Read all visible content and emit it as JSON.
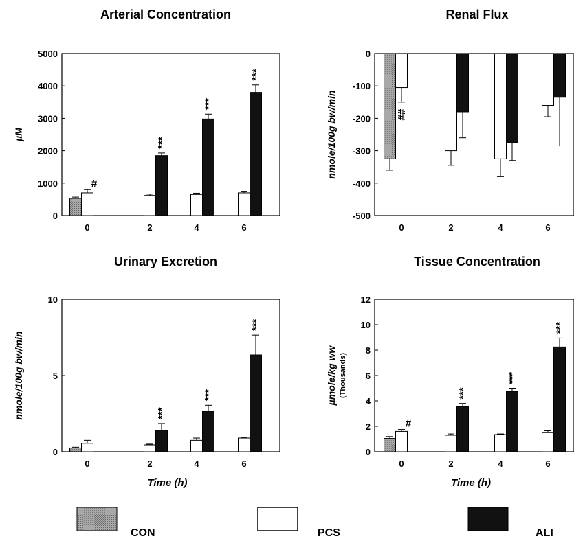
{
  "colors": {
    "CON": "#9a9a9a",
    "PCS": "#ffffff",
    "ALI": "#111111",
    "axis": "#000000"
  },
  "legend": [
    {
      "key": "CON",
      "label": "CON"
    },
    {
      "key": "PCS",
      "label": "PCS"
    },
    {
      "key": "ALI",
      "label": "ALI"
    }
  ],
  "chart_data": [
    {
      "type": "bar",
      "title": "Arterial Concentration",
      "ylabel": "µM",
      "ysublabel": "",
      "xlabel": "",
      "ylim": [
        0,
        5000
      ],
      "yticks": [
        0,
        1000,
        2000,
        3000,
        4000,
        5000
      ],
      "categories": [
        "0",
        "2",
        "4",
        "6"
      ],
      "series": [
        {
          "name": "CON",
          "values": [
            530,
            null,
            null,
            null
          ],
          "errors": [
            40,
            null,
            null,
            null
          ],
          "ann": [
            null,
            null,
            null,
            null
          ]
        },
        {
          "name": "PCS",
          "values": [
            700,
            620,
            650,
            700
          ],
          "errors": [
            100,
            40,
            40,
            50
          ],
          "ann": [
            "#",
            null,
            null,
            null
          ]
        },
        {
          "name": "ALI",
          "values": [
            null,
            1850,
            2980,
            3800
          ],
          "errors": [
            null,
            80,
            150,
            230
          ],
          "ann": [
            null,
            "***",
            "***",
            "***"
          ]
        }
      ]
    },
    {
      "type": "bar",
      "title": "Renal Flux",
      "ylabel": "nmole/100g bw/min",
      "ysublabel": "",
      "xlabel": "",
      "ylim": [
        -500,
        0
      ],
      "yticks": [
        -500,
        -400,
        -300,
        -200,
        -100,
        0
      ],
      "categories": [
        "0",
        "2",
        "4",
        "6"
      ],
      "series": [
        {
          "name": "CON",
          "values": [
            -325,
            null,
            null,
            null
          ],
          "errors": [
            35,
            null,
            null,
            null
          ],
          "ann": [
            null,
            null,
            null,
            null
          ]
        },
        {
          "name": "PCS",
          "values": [
            -105,
            -300,
            -325,
            -160
          ],
          "errors": [
            45,
            45,
            55,
            35
          ],
          "ann": [
            "##",
            null,
            null,
            null
          ]
        },
        {
          "name": "ALI",
          "values": [
            null,
            -180,
            -275,
            -135
          ],
          "errors": [
            null,
            80,
            55,
            150
          ],
          "ann": [
            null,
            null,
            null,
            null
          ]
        }
      ]
    },
    {
      "type": "bar",
      "title": "Urinary Excretion",
      "ylabel": "nmole/100g bw/min",
      "ysublabel": "",
      "xlabel": "Time (h)",
      "ylim": [
        0,
        10
      ],
      "yticks": [
        0,
        5,
        10
      ],
      "categories": [
        "0",
        "2",
        "4",
        "6"
      ],
      "series": [
        {
          "name": "CON",
          "values": [
            0.25,
            null,
            null,
            null
          ],
          "errors": [
            0.05,
            null,
            null,
            null
          ],
          "ann": [
            null,
            null,
            null,
            null
          ]
        },
        {
          "name": "PCS",
          "values": [
            0.55,
            0.45,
            0.75,
            0.9
          ],
          "errors": [
            0.2,
            0.05,
            0.15,
            0.05
          ],
          "ann": [
            null,
            null,
            null,
            null
          ]
        },
        {
          "name": "ALI",
          "values": [
            null,
            1.4,
            2.65,
            6.35
          ],
          "errors": [
            null,
            0.45,
            0.4,
            1.3
          ],
          "ann": [
            null,
            "***",
            "***",
            "***"
          ]
        }
      ]
    },
    {
      "type": "bar",
      "title": "Tissue Concentration",
      "ylabel": "µmole/kg ww",
      "ysublabel": "(Thousands)",
      "xlabel": "Time (h)",
      "ylim": [
        0,
        12
      ],
      "yticks": [
        0,
        2,
        4,
        6,
        8,
        10,
        12
      ],
      "categories": [
        "0",
        "2",
        "4",
        "6"
      ],
      "series": [
        {
          "name": "CON",
          "values": [
            1.05,
            null,
            null,
            null
          ],
          "errors": [
            0.15,
            null,
            null,
            null
          ],
          "ann": [
            null,
            null,
            null,
            null
          ]
        },
        {
          "name": "PCS",
          "values": [
            1.6,
            1.3,
            1.35,
            1.5
          ],
          "errors": [
            0.15,
            0.1,
            0.05,
            0.15
          ],
          "ann": [
            "#",
            null,
            null,
            null
          ]
        },
        {
          "name": "ALI",
          "values": [
            null,
            3.55,
            4.75,
            8.25
          ],
          "errors": [
            null,
            0.25,
            0.25,
            0.7
          ],
          "ann": [
            null,
            "***",
            "***",
            "***"
          ]
        }
      ]
    }
  ]
}
